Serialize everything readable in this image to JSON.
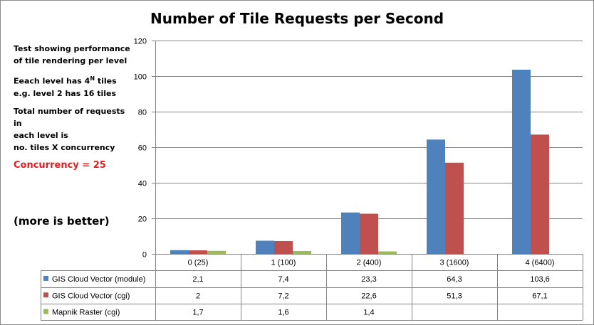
{
  "title": "Number of Tile Requests per Second",
  "notes": {
    "line1": "Test showing performance",
    "line2": "of tile rendering per level",
    "line3_prefix": "Eeach level has 4",
    "line3_sup": "N",
    "line3_suffix": " tiles",
    "line4": "e.g. level 2 has 16 tiles",
    "line5": "Total number of requests in",
    "line6": "each level is",
    "line7": "no. tiles X concurrency",
    "concurrency": "Concurrency = 25",
    "more_is_better": "(more is better)"
  },
  "colors": {
    "gis_module": "#4f81bd",
    "gis_cgi": "#c0504d",
    "mapnik": "#9bbb59",
    "grid": "#868686"
  },
  "chart_data": {
    "type": "bar",
    "title": "Number of Tile Requests per Second",
    "categories": [
      "0 (25)",
      "1 (100)",
      "2 (400)",
      "3 (1600)",
      "4  (6400)"
    ],
    "ylim": [
      0,
      120
    ],
    "yticks": [
      0,
      20,
      40,
      60,
      80,
      100,
      120
    ],
    "grid": true,
    "legend": "data-table",
    "series": [
      {
        "name": "GIS Cloud Vector (module)",
        "values": [
          2.1,
          7.4,
          23.3,
          64.3,
          103.6
        ],
        "labels": [
          "2,1",
          "7,4",
          "23,3",
          "64,3",
          "103,6"
        ]
      },
      {
        "name": "GIS Cloud Vector (cgi)",
        "values": [
          2,
          7.2,
          22.6,
          51.3,
          67.1
        ],
        "labels": [
          "2",
          "7,2",
          "22,6",
          "51,3",
          "67,1"
        ]
      },
      {
        "name": "Mapnik Raster (cgi)",
        "values": [
          1.7,
          1.6,
          1.4,
          null,
          null
        ],
        "labels": [
          "1,7",
          "1,6",
          "1,4",
          "",
          ""
        ]
      }
    ]
  }
}
